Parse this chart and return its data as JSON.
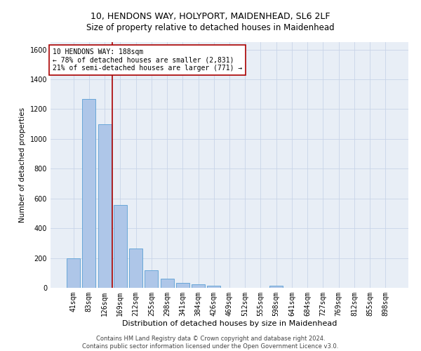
{
  "title": "10, HENDONS WAY, HOLYPORT, MAIDENHEAD, SL6 2LF",
  "subtitle": "Size of property relative to detached houses in Maidenhead",
  "xlabel": "Distribution of detached houses by size in Maidenhead",
  "ylabel": "Number of detached properties",
  "footer_line1": "Contains HM Land Registry data © Crown copyright and database right 2024.",
  "footer_line2": "Contains public sector information licensed under the Open Government Licence v3.0.",
  "categories": [
    "41sqm",
    "83sqm",
    "126sqm",
    "169sqm",
    "212sqm",
    "255sqm",
    "298sqm",
    "341sqm",
    "384sqm",
    "426sqm",
    "469sqm",
    "512sqm",
    "555sqm",
    "598sqm",
    "641sqm",
    "684sqm",
    "727sqm",
    "769sqm",
    "812sqm",
    "855sqm",
    "898sqm"
  ],
  "values": [
    200,
    1270,
    1100,
    555,
    265,
    120,
    60,
    35,
    25,
    15,
    0,
    0,
    0,
    15,
    0,
    0,
    0,
    0,
    0,
    0,
    0
  ],
  "bar_color": "#aec6e8",
  "bar_edge_color": "#5a9fd4",
  "vline_x": 2.5,
  "vline_color": "#aa0000",
  "annotation_box_text": "10 HENDONS WAY: 188sqm\n← 78% of detached houses are smaller (2,831)\n21% of semi-detached houses are larger (771) →",
  "annotation_box_facecolor": "#ffffff",
  "annotation_box_edgecolor": "#aa0000",
  "annotation_text_fontsize": 7,
  "ylim": [
    0,
    1650
  ],
  "yticks": [
    0,
    200,
    400,
    600,
    800,
    1000,
    1200,
    1400,
    1600
  ],
  "grid_color": "#c8d4e8",
  "bg_color": "#e8eef6",
  "title_fontsize": 9,
  "subtitle_fontsize": 8.5,
  "xlabel_fontsize": 8,
  "ylabel_fontsize": 7.5,
  "tick_fontsize": 7,
  "footer_fontsize": 6
}
